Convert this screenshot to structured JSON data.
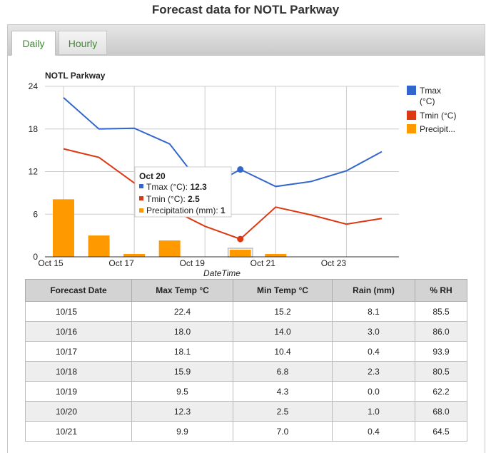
{
  "page_title": "Forecast data for NOTL Parkway",
  "tabs": [
    {
      "label": "Daily",
      "active": true
    },
    {
      "label": "Hourly",
      "active": false
    }
  ],
  "colors": {
    "tmax": "#3366cc",
    "tmin": "#dc3912",
    "precip": "#ff9900",
    "tab_text": "#3c8a2e"
  },
  "chart_data": {
    "type": "line",
    "title": "NOTL Parkway",
    "xlabel": "DateTime",
    "ylabel": "",
    "ylim": [
      0,
      24
    ],
    "yticks": [
      "0",
      "6",
      "12",
      "18",
      "24"
    ],
    "xticks": [
      "Oct 15",
      "Oct 17",
      "Oct 19",
      "Oct 21",
      "Oct 23"
    ],
    "x": [
      "Oct 15",
      "Oct 16",
      "Oct 17",
      "Oct 18",
      "Oct 19",
      "Oct 20",
      "Oct 21",
      "Oct 22",
      "Oct 23",
      "Oct 24"
    ],
    "series": [
      {
        "name": "Tmax (°C)",
        "type": "line",
        "values": [
          22.4,
          18.0,
          18.1,
          15.9,
          9.5,
          12.3,
          9.9,
          10.6,
          12.1,
          14.8
        ]
      },
      {
        "name": "Tmin (°C)",
        "type": "line",
        "values": [
          15.2,
          14.0,
          10.4,
          6.8,
          4.3,
          2.5,
          7.0,
          5.9,
          4.6,
          5.4
        ]
      },
      {
        "name": "Precipitation (mm)",
        "type": "bar",
        "values": [
          8.1,
          3.0,
          0.4,
          2.3,
          0.0,
          1.0,
          0.4,
          0,
          0,
          0
        ]
      }
    ],
    "legend": {
      "position": "right",
      "entries": [
        "Tmax\n(°C)",
        "Tmin (°C)",
        "Precipit..."
      ]
    },
    "grid": true,
    "tooltip": {
      "title": "Oct 20",
      "rows": [
        {
          "label": "Tmax (°C): ",
          "value": "12.3"
        },
        {
          "label": "Tmin (°C): ",
          "value": "2.5"
        },
        {
          "label": "Precipitation (mm): ",
          "value": "1"
        }
      ]
    }
  },
  "table": {
    "headers": [
      "Forecast Date",
      "Max Temp °C",
      "Min Temp °C",
      "Rain (mm)",
      "% RH"
    ],
    "rows": [
      [
        "10/15",
        "22.4",
        "15.2",
        "8.1",
        "85.5"
      ],
      [
        "10/16",
        "18.0",
        "14.0",
        "3.0",
        "86.0"
      ],
      [
        "10/17",
        "18.1",
        "10.4",
        "0.4",
        "93.9"
      ],
      [
        "10/18",
        "15.9",
        "6.8",
        "2.3",
        "80.5"
      ],
      [
        "10/19",
        "9.5",
        "4.3",
        "0.0",
        "62.2"
      ],
      [
        "10/20",
        "12.3",
        "2.5",
        "1.0",
        "68.0"
      ],
      [
        "10/21",
        "9.9",
        "7.0",
        "0.4",
        "64.5"
      ]
    ]
  }
}
